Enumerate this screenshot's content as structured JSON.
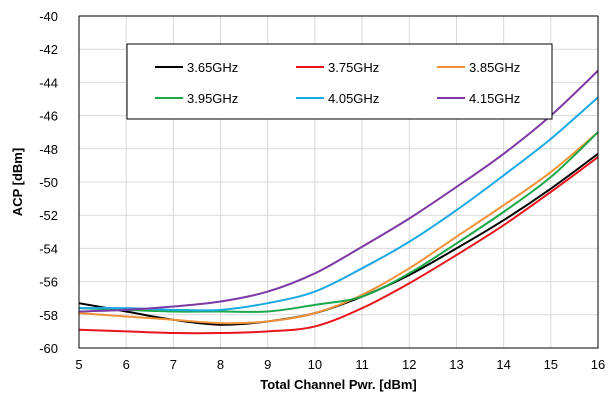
{
  "chart_data": {
    "type": "line",
    "title": "",
    "xlabel": "Total Channel Pwr. [dBm]",
    "ylabel": "ACP [dBm]",
    "xlim": [
      5,
      16
    ],
    "ylim": [
      -60,
      -40
    ],
    "xticks": [
      5,
      6,
      7,
      8,
      9,
      10,
      11,
      12,
      13,
      14,
      15,
      16
    ],
    "yticks": [
      -40,
      -42,
      -44,
      -46,
      -48,
      -50,
      -52,
      -54,
      -56,
      -58,
      -60
    ],
    "grid": true,
    "legend_position": "top-left",
    "series": [
      {
        "name": "3.65GHz",
        "color": "#000000",
        "x": [
          5,
          6,
          7,
          8,
          9,
          10,
          11,
          12,
          13,
          14,
          15,
          16
        ],
        "y": [
          -57.3,
          -57.8,
          -58.3,
          -58.6,
          -58.4,
          -57.9,
          -56.9,
          -55.6,
          -54.0,
          -52.3,
          -50.4,
          -48.3
        ]
      },
      {
        "name": "3.75GHz",
        "color": "#e8141b",
        "x": [
          5,
          6,
          7,
          8,
          9,
          10,
          11,
          12,
          13,
          14,
          15,
          16
        ],
        "y": [
          -58.9,
          -59.0,
          -59.1,
          -59.1,
          -59.0,
          -58.7,
          -57.6,
          -56.1,
          -54.4,
          -52.6,
          -50.6,
          -48.5
        ]
      },
      {
        "name": "3.85GHz",
        "color": "#f0913a",
        "x": [
          5,
          6,
          7,
          8,
          9,
          10,
          11,
          12,
          13,
          14,
          15,
          16
        ],
        "y": [
          -57.9,
          -58.1,
          -58.3,
          -58.5,
          -58.4,
          -57.9,
          -56.8,
          -55.2,
          -53.3,
          -51.4,
          -49.4,
          -47.0
        ]
      },
      {
        "name": "3.95GHz",
        "color": "#1aa84b",
        "x": [
          5,
          6,
          7,
          8,
          9,
          10,
          11,
          12,
          13,
          14,
          15,
          16
        ],
        "y": [
          -57.6,
          -57.7,
          -57.8,
          -57.8,
          -57.8,
          -57.4,
          -56.9,
          -55.5,
          -53.7,
          -51.8,
          -49.7,
          -47.0
        ]
      },
      {
        "name": "4.05GHz",
        "color": "#1aa9e3",
        "x": [
          5,
          6,
          7,
          8,
          9,
          10,
          11,
          12,
          13,
          14,
          15,
          16
        ],
        "y": [
          -57.6,
          -57.6,
          -57.7,
          -57.7,
          -57.3,
          -56.6,
          -55.2,
          -53.6,
          -51.7,
          -49.6,
          -47.4,
          -44.9
        ]
      },
      {
        "name": "4.15GHz",
        "color": "#7d3aa6",
        "x": [
          5,
          6,
          7,
          8,
          9,
          10,
          11,
          12,
          13,
          14,
          15,
          16
        ],
        "y": [
          -57.8,
          -57.7,
          -57.5,
          -57.2,
          -56.6,
          -55.5,
          -53.9,
          -52.2,
          -50.3,
          -48.3,
          -46.0,
          -43.3
        ]
      }
    ]
  }
}
